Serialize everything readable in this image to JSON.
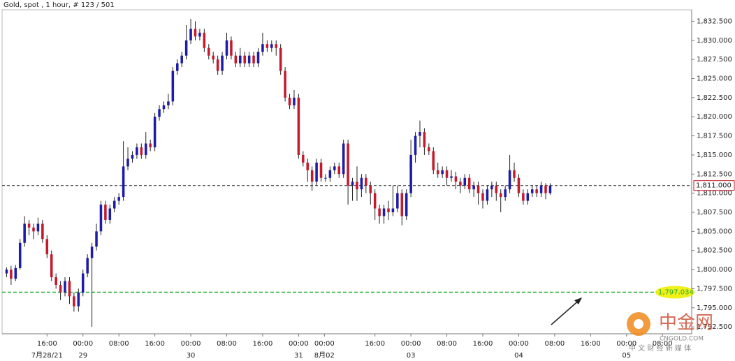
{
  "chart_data": {
    "type": "candlestick",
    "title": "Gold, spot , 1 hour, # 123 / 501",
    "open": [
      1799.5,
      1800,
      1798.8,
      1800.2,
      1803.5,
      1806,
      1805.5,
      1805,
      1806,
      1804,
      1802,
      1799,
      1798,
      1797,
      1798.5,
      1796.5,
      1795.2,
      1797,
      1799.5,
      1801.5,
      1803,
      1805,
      1808.5,
      1806.5,
      1808,
      1809,
      1809.5,
      1813.5,
      1814.5,
      1815,
      1816,
      1815,
      1816.5,
      1816,
      1820,
      1821,
      1821.5,
      1822,
      1826,
      1827,
      1828,
      1830,
      1831.5,
      1830.5,
      1831,
      1829,
      1828,
      1827.5,
      1826,
      1828,
      1830,
      1828,
      1827,
      1828,
      1827,
      1828,
      1827,
      1828.5,
      1829.5,
      1829,
      1829.5,
      1829,
      1826,
      1822.5,
      1821.5,
      1822.5,
      1815,
      1814,
      1813,
      1811.5,
      1814,
      1812,
      1812,
      1813,
      1813.5,
      1812.5,
      1816.5,
      1811,
      1811.5,
      1810.5,
      1812,
      1811,
      1810,
      1808,
      1807,
      1808,
      1807.5,
      1808,
      1810,
      1807,
      1810,
      1815,
      1817.5,
      1818,
      1816,
      1815.5,
      1813,
      1812.5,
      1813,
      1812,
      1812.2,
      1811.5,
      1811,
      1812,
      1810.5,
      1811,
      1810,
      1809,
      1810.5,
      1811,
      1810,
      1809.5,
      1810.5,
      1813,
      1812,
      1810,
      1809,
      1810,
      1810.5,
      1810,
      1811,
      1810
    ],
    "high": [
      1800.3,
      1800.5,
      1800.6,
      1804,
      1807,
      1806.5,
      1806,
      1806.8,
      1806.5,
      1804.5,
      1802.5,
      1799.5,
      1798.5,
      1799,
      1799,
      1797,
      1797.5,
      1800,
      1802,
      1803.5,
      1806,
      1809,
      1809,
      1808.5,
      1809.5,
      1810,
      1816.8,
      1816,
      1815.5,
      1816.5,
      1816.5,
      1818,
      1817,
      1820.5,
      1821.5,
      1822,
      1823,
      1826.5,
      1827.5,
      1828.5,
      1832,
      1832.8,
      1832.5,
      1831.5,
      1831.5,
      1829.5,
      1828.5,
      1828,
      1828.5,
      1831,
      1830.5,
      1828.5,
      1829,
      1828.5,
      1828.5,
      1828.5,
      1829,
      1831,
      1830,
      1830,
      1830,
      1829.5,
      1826.5,
      1823,
      1823.5,
      1823,
      1815.5,
      1814.5,
      1813.5,
      1814.5,
      1814.5,
      1812.5,
      1813.5,
      1814,
      1814,
      1817,
      1817,
      1812,
      1813.5,
      1812.5,
      1812.5,
      1811.5,
      1810.5,
      1808.5,
      1808.5,
      1809,
      1811,
      1811,
      1810.5,
      1810.5,
      1817,
      1818,
      1819.5,
      1818.5,
      1816.5,
      1816,
      1814,
      1813.5,
      1813.5,
      1813,
      1812.8,
      1812,
      1812.5,
      1812.5,
      1811.5,
      1811.5,
      1810.5,
      1811,
      1811.5,
      1811.5,
      1810.5,
      1811,
      1815,
      1814,
      1812.5,
      1810.5,
      1810.5,
      1811,
      1811,
      1811.5,
      1811.3,
      1811.3
    ],
    "low": [
      1799,
      1798,
      1798.5,
      1800,
      1803,
      1804.5,
      1804,
      1804.5,
      1803.5,
      1801.5,
      1798.5,
      1797.5,
      1796,
      1796.5,
      1795.5,
      1794.5,
      1794.5,
      1796.5,
      1799,
      1792.5,
      1802.5,
      1804.5,
      1806,
      1806,
      1807.5,
      1808.5,
      1809,
      1813,
      1814,
      1814.5,
      1814.5,
      1814.5,
      1815.5,
      1815.5,
      1819.5,
      1820.5,
      1821,
      1821.5,
      1825.5,
      1826.5,
      1827.5,
      1829.5,
      1830,
      1830,
      1828.5,
      1827.5,
      1827,
      1825.5,
      1825.5,
      1827.5,
      1827.5,
      1826.5,
      1826.5,
      1826.5,
      1826.5,
      1826.5,
      1826.5,
      1828,
      1828.5,
      1828.5,
      1828,
      1825.5,
      1822,
      1821,
      1821,
      1814.5,
      1813.5,
      1811.5,
      1810.3,
      1811,
      1811.5,
      1811.5,
      1811.5,
      1812.5,
      1812,
      1812,
      1808.5,
      1809,
      1809,
      1809.5,
      1810,
      1808.5,
      1806.5,
      1806,
      1806,
      1806.5,
      1807,
      1807.5,
      1805.8,
      1806.5,
      1809.5,
      1814,
      1816,
      1815,
      1815,
      1812.5,
      1812,
      1812,
      1811,
      1811.5,
      1810.5,
      1810,
      1810.5,
      1810,
      1809.5,
      1808.5,
      1808,
      1808.5,
      1809.5,
      1809,
      1807.5,
      1809,
      1810,
      1811.5,
      1809.5,
      1808.5,
      1808.5,
      1809.5,
      1809.5,
      1809.5,
      1809.2,
      1809.8
    ],
    "close": [
      1800,
      1798.8,
      1800.2,
      1803.5,
      1806,
      1805.5,
      1805,
      1806,
      1804,
      1802,
      1799,
      1798,
      1797,
      1798.5,
      1796.5,
      1795.2,
      1797,
      1799.5,
      1801.5,
      1803,
      1805,
      1808.5,
      1806.5,
      1808,
      1809,
      1809.5,
      1813.5,
      1814.5,
      1815,
      1816,
      1815,
      1816.5,
      1816,
      1820,
      1821,
      1821.5,
      1822,
      1826,
      1827,
      1828,
      1830,
      1831.5,
      1830.5,
      1831,
      1829,
      1828,
      1827.5,
      1826,
      1828,
      1830,
      1828,
      1827,
      1828,
      1827,
      1828,
      1827,
      1828.5,
      1829.5,
      1829,
      1829.5,
      1829,
      1826,
      1822.5,
      1821.5,
      1822.5,
      1815,
      1814,
      1813,
      1811.5,
      1814,
      1812,
      1812,
      1813,
      1813.5,
      1812.5,
      1816.5,
      1811,
      1811.5,
      1810.5,
      1812,
      1811,
      1810,
      1808,
      1807,
      1808,
      1807.5,
      1808,
      1810,
      1807,
      1810,
      1815,
      1817.5,
      1818,
      1816,
      1815.5,
      1813,
      1812.5,
      1813,
      1812,
      1812.2,
      1811.5,
      1811,
      1812,
      1810.5,
      1811,
      1810,
      1809,
      1810.5,
      1811,
      1810,
      1809.5,
      1810.5,
      1813,
      1812,
      1810,
      1809,
      1810,
      1810.5,
      1810,
      1811,
      1810,
      1811
    ],
    "up_color": "#1c1ca8",
    "down_color": "#c41a2c",
    "xlim": [
      -1,
      152.5
    ],
    "ylim": [
      1791.6,
      1834
    ],
    "yticks": [
      {
        "value": 1792.5,
        "label": "1,792.500"
      },
      {
        "value": 1795,
        "label": "1,795.000"
      },
      {
        "value": 1797.5,
        "label": "1,797.500"
      },
      {
        "value": 1800,
        "label": "1,800.000"
      },
      {
        "value": 1802.5,
        "label": "1,802.500"
      },
      {
        "value": 1805,
        "label": "1,805.000"
      },
      {
        "value": 1807.5,
        "label": "1,807.500"
      },
      {
        "value": 1810,
        "label": "1,810.000"
      },
      {
        "value": 1812.5,
        "label": "1,812.500"
      },
      {
        "value": 1815,
        "label": "1,815.000"
      },
      {
        "value": 1817.5,
        "label": "1,817.500"
      },
      {
        "value": 1820,
        "label": "1,820.000"
      },
      {
        "value": 1822.5,
        "label": "1,822.500"
      },
      {
        "value": 1825,
        "label": "1,825.000"
      },
      {
        "value": 1827.5,
        "label": "1,827.500"
      },
      {
        "value": 1830,
        "label": "1,830.000"
      },
      {
        "value": 1832.5,
        "label": "1,832.500"
      }
    ],
    "xticks": [
      {
        "value": 9,
        "label": "16:00"
      },
      {
        "value": 17,
        "label": "00:00"
      },
      {
        "value": 25,
        "label": "08:00"
      },
      {
        "value": 33,
        "label": "16:00"
      },
      {
        "value": 41,
        "label": "00:00"
      },
      {
        "value": 49,
        "label": "08:00"
      },
      {
        "value": 57,
        "label": "16:00"
      },
      {
        "value": 65,
        "label": "00:00"
      },
      {
        "value": 70.75,
        "label": "00:00"
      },
      {
        "value": 82,
        "label": "16:00"
      },
      {
        "value": 90,
        "label": "00:00"
      },
      {
        "value": 98,
        "label": "08:00"
      },
      {
        "value": 106,
        "label": "16:00"
      },
      {
        "value": 114,
        "label": "00:00"
      },
      {
        "value": 122,
        "label": "08:00"
      },
      {
        "value": 130,
        "label": "16:00"
      },
      {
        "value": 138,
        "label": "00:00"
      },
      {
        "value": 146,
        "label": "08:00"
      }
    ],
    "xdates": [
      {
        "value": 9,
        "label": "7月28/21"
      },
      {
        "value": 17,
        "label": "29"
      },
      {
        "value": 41,
        "label": "30"
      },
      {
        "value": 65,
        "label": "31"
      },
      {
        "value": 70.75,
        "label": "8月02"
      },
      {
        "value": 90,
        "label": "03"
      },
      {
        "value": 114,
        "label": "04"
      },
      {
        "value": 138,
        "label": "05"
      }
    ],
    "hlines": [
      {
        "value": 1811,
        "label": "1,811.000",
        "color": "#222222"
      },
      {
        "value": 1797.034,
        "label": "1,797.034",
        "color": "#22aa33",
        "highlight": "#eef000"
      }
    ],
    "watermark": {
      "name": "中金网",
      "site": "CNGOLD.COM",
      "slogan": "中 文 财 经 新 媒 体"
    }
  }
}
